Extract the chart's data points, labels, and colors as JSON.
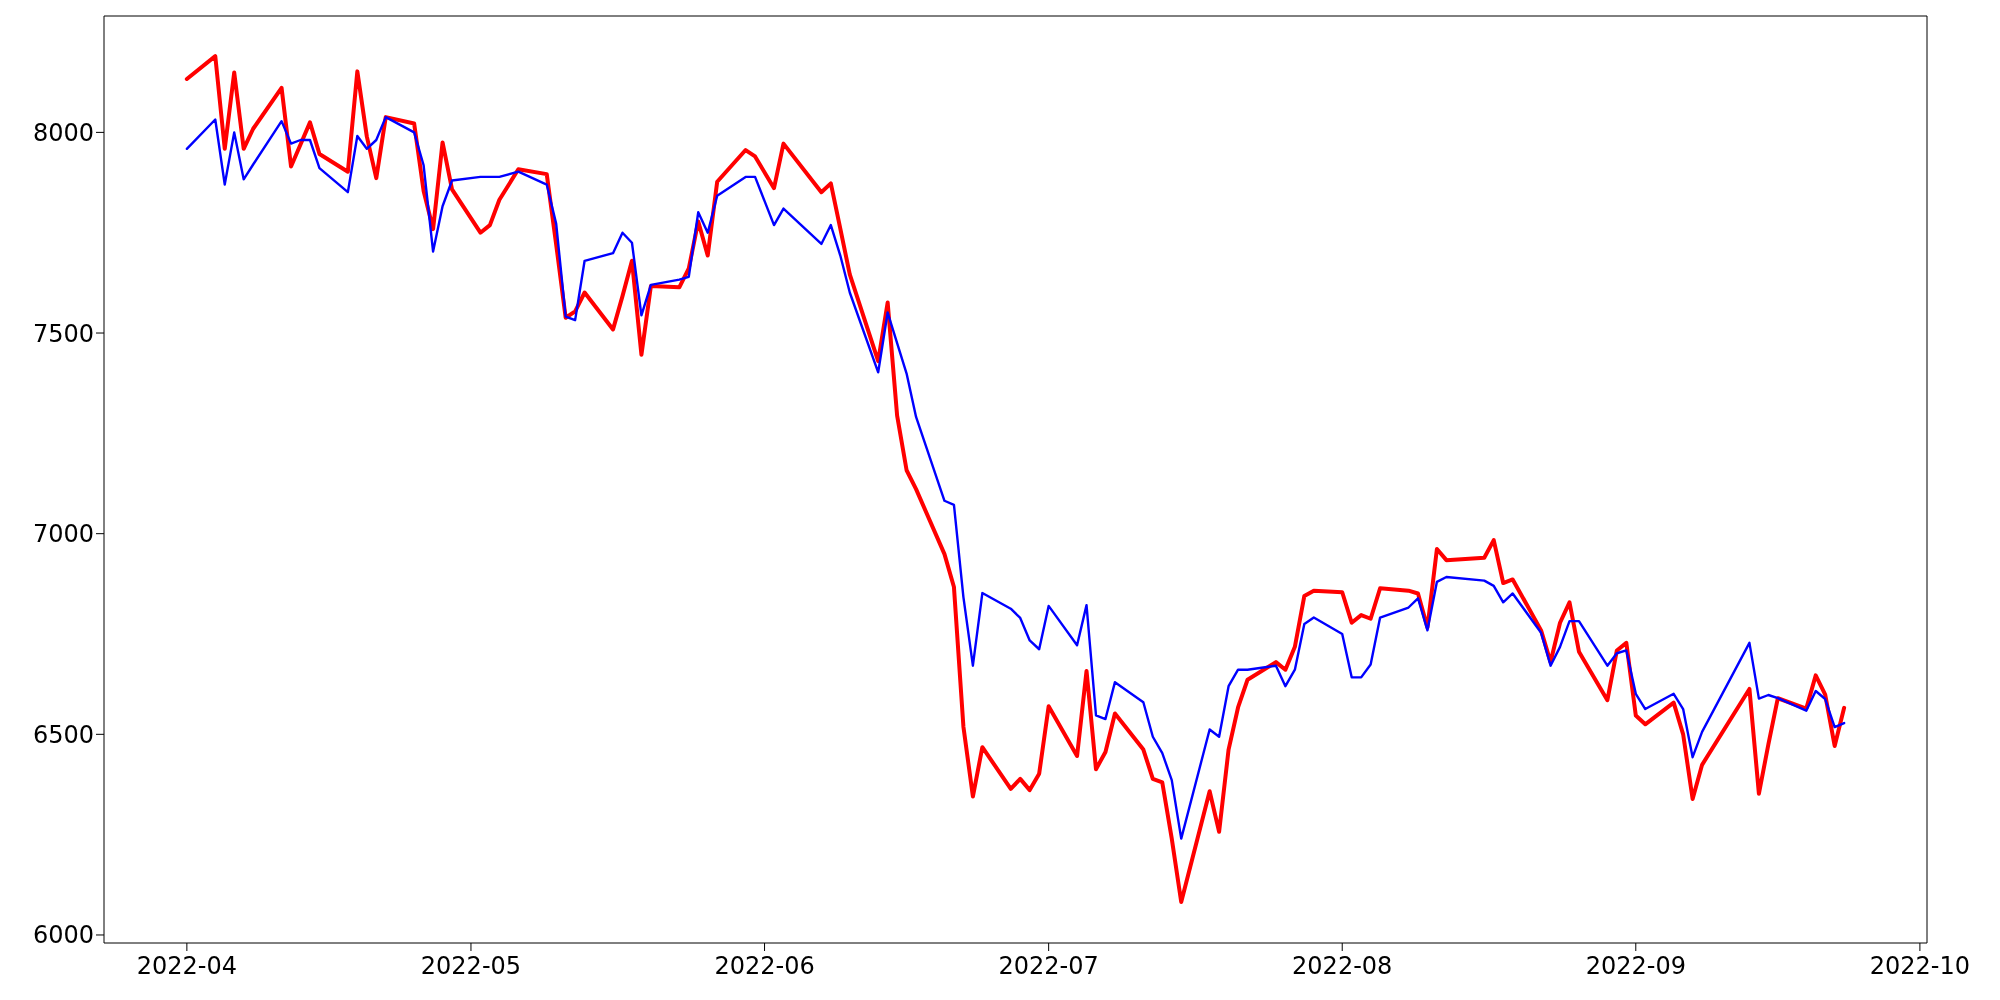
{
  "chart_data": {
    "type": "line",
    "marker": "none",
    "line_style": "solid",
    "grid": false,
    "legend": false,
    "x": [
      "2022-04-01",
      "2022-04-04",
      "2022-04-05",
      "2022-04-06",
      "2022-04-07",
      "2022-04-08",
      "2022-04-11",
      "2022-04-12",
      "2022-04-13",
      "2022-04-14",
      "2022-04-15",
      "2022-04-18",
      "2022-04-19",
      "2022-04-20",
      "2022-04-21",
      "2022-04-22",
      "2022-04-25",
      "2022-04-26",
      "2022-04-27",
      "2022-04-28",
      "2022-04-29",
      "2022-05-02",
      "2022-05-03",
      "2022-05-04",
      "2022-05-06",
      "2022-05-09",
      "2022-05-10",
      "2022-05-11",
      "2022-05-12",
      "2022-05-13",
      "2022-05-16",
      "2022-05-17",
      "2022-05-18",
      "2022-05-19",
      "2022-05-20",
      "2022-05-23",
      "2022-05-24",
      "2022-05-25",
      "2022-05-26",
      "2022-05-27",
      "2022-05-30",
      "2022-05-31",
      "2022-06-02",
      "2022-06-03",
      "2022-06-07",
      "2022-06-08",
      "2022-06-09",
      "2022-06-10",
      "2022-06-13",
      "2022-06-14",
      "2022-06-15",
      "2022-06-16",
      "2022-06-17",
      "2022-06-20",
      "2022-06-21",
      "2022-06-22",
      "2022-06-23",
      "2022-06-24",
      "2022-06-27",
      "2022-06-28",
      "2022-06-29",
      "2022-06-30",
      "2022-07-01",
      "2022-07-04",
      "2022-07-05",
      "2022-07-06",
      "2022-07-07",
      "2022-07-08",
      "2022-07-11",
      "2022-07-12",
      "2022-07-13",
      "2022-07-14",
      "2022-07-15",
      "2022-07-18",
      "2022-07-19",
      "2022-07-20",
      "2022-07-21",
      "2022-07-22",
      "2022-07-25",
      "2022-07-26",
      "2022-07-27",
      "2022-07-28",
      "2022-07-29",
      "2022-08-01",
      "2022-08-02",
      "2022-08-03",
      "2022-08-04",
      "2022-08-05",
      "2022-08-08",
      "2022-08-09",
      "2022-08-10",
      "2022-08-11",
      "2022-08-12",
      "2022-08-16",
      "2022-08-17",
      "2022-08-18",
      "2022-08-19",
      "2022-08-22",
      "2022-08-23",
      "2022-08-24",
      "2022-08-25",
      "2022-08-26",
      "2022-08-29",
      "2022-08-30",
      "2022-08-31",
      "2022-09-01",
      "2022-09-02",
      "2022-09-05",
      "2022-09-06",
      "2022-09-07",
      "2022-09-08",
      "2022-09-13",
      "2022-09-14",
      "2022-09-15",
      "2022-09-16",
      "2022-09-19",
      "2022-09-20",
      "2022-09-21",
      "2022-09-22",
      "2022-09-23"
    ],
    "series": [
      {
        "color": "#ff0000",
        "values": [
          8133,
          8190,
          7959,
          8149,
          7959,
          8009,
          8111,
          7915,
          7970,
          8025,
          7946,
          7902,
          8152,
          7990,
          7886,
          8038,
          8022,
          7854,
          7759,
          7975,
          7858,
          7750,
          7769,
          7832,
          7908,
          7896,
          7720,
          7538,
          7554,
          7601,
          7509,
          7592,
          7680,
          7446,
          7617,
          7614,
          7661,
          7778,
          7693,
          7877,
          7956,
          7940,
          7861,
          7972,
          7851,
          7873,
          7760,
          7646,
          7430,
          7576,
          7294,
          7158,
          7111,
          6949,
          6867,
          6519,
          6345,
          6468,
          6364,
          6389,
          6361,
          6402,
          6570,
          6446,
          6658,
          6413,
          6456,
          6552,
          6462,
          6389,
          6380,
          6240,
          6082,
          6358,
          6257,
          6462,
          6567,
          6636,
          6680,
          6661,
          6718,
          6845,
          6858,
          6854,
          6778,
          6797,
          6788,
          6864,
          6858,
          6851,
          6766,
          6962,
          6934,
          6940,
          6984,
          6877,
          6886,
          6759,
          6680,
          6778,
          6829,
          6706,
          6585,
          6709,
          6728,
          6547,
          6525,
          6579,
          6500,
          6339,
          6424,
          6613,
          6352,
          6475,
          6590,
          6564,
          6647,
          6599,
          6471,
          6566
        ]
      },
      {
        "color": "#0000ff",
        "values": [
          7959,
          8032,
          7870,
          8000,
          7883,
          7920,
          8028,
          7972,
          7981,
          7981,
          7911,
          7851,
          7991,
          7959,
          7981,
          8038,
          8000,
          7918,
          7703,
          7816,
          7880,
          7889,
          7889,
          7889,
          7902,
          7870,
          7772,
          7541,
          7532,
          7680,
          7699,
          7750,
          7725,
          7544,
          7620,
          7633,
          7640,
          7801,
          7750,
          7842,
          7889,
          7889,
          7769,
          7810,
          7722,
          7769,
          7693,
          7601,
          7402,
          7551,
          7475,
          7399,
          7291,
          7082,
          7072,
          6842,
          6671,
          6852,
          6813,
          6790,
          6734,
          6712,
          6820,
          6722,
          6822,
          6547,
          6538,
          6630,
          6580,
          6494,
          6453,
          6386,
          6240,
          6512,
          6494,
          6620,
          6661,
          6661,
          6671,
          6620,
          6661,
          6775,
          6791,
          6750,
          6642,
          6642,
          6674,
          6791,
          6816,
          6839,
          6759,
          6880,
          6892,
          6883,
          6870,
          6829,
          6851,
          6753,
          6671,
          6718,
          6782,
          6782,
          6671,
          6702,
          6709,
          6601,
          6563,
          6601,
          6563,
          6443,
          6506,
          6728,
          6589,
          6598,
          6590,
          6559,
          6608,
          6588,
          6518,
          6528
        ]
      }
    ],
    "xlim": [
      "2022-03-23T06:00",
      "2022-10-01T18:00"
    ],
    "xticks": [
      {
        "value": "2022-04-01",
        "label": "2022-04"
      },
      {
        "value": "2022-05-01",
        "label": "2022-05"
      },
      {
        "value": "2022-06-01",
        "label": "2022-06"
      },
      {
        "value": "2022-07-01",
        "label": "2022-07"
      },
      {
        "value": "2022-08-01",
        "label": "2022-08"
      },
      {
        "value": "2022-09-01",
        "label": "2022-09"
      },
      {
        "value": "2022-10-01",
        "label": "2022-10"
      }
    ],
    "ylim": [
      5980,
      8290
    ],
    "yticks": [
      6000,
      6500,
      7000,
      7500,
      8000
    ]
  }
}
